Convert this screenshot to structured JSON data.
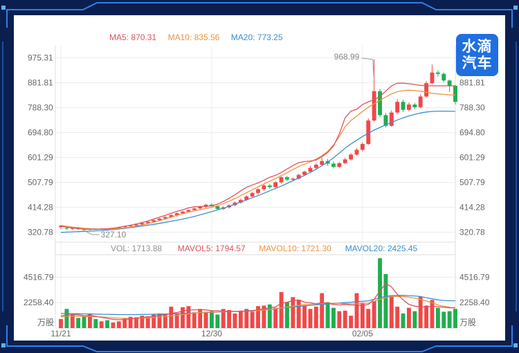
{
  "logo": {
    "line1": "水滴",
    "line2": "汽车"
  },
  "price_legend": [
    {
      "label": "MA5: 870.31",
      "color": "#e0505c"
    },
    {
      "label": "MA10: 835.56",
      "color": "#f0923c"
    },
    {
      "label": "MA20: 773.25",
      "color": "#3a8fd0"
    }
  ],
  "volume_legend": [
    {
      "label": "VOL: 1713.88",
      "color": "#909090"
    },
    {
      "label": "MAVOL5: 1794.57",
      "color": "#e0505c"
    },
    {
      "label": "MAVOL10: 1721.30",
      "color": "#f0923c"
    },
    {
      "label": "MAVOL20: 2425.45",
      "color": "#3a8fd0"
    }
  ],
  "colors": {
    "up": "#f04848",
    "down": "#1fae4e",
    "ma5": "#e0505c",
    "ma10": "#f0923c",
    "ma20": "#3a8fd0",
    "grid": "#ececec",
    "axis_text": "#666666"
  },
  "chart_data": [
    {
      "type": "candlestick",
      "title": "",
      "yticks": [
        "975.31",
        "881.81",
        "788.30",
        "694.80",
        "601.29",
        "507.79",
        "414.28",
        "320.78"
      ],
      "ylim": [
        290,
        1000
      ],
      "grid": true,
      "annotations": [
        {
          "text": "968.99",
          "label": "high"
        },
        {
          "text": "327.10",
          "label": "low"
        }
      ],
      "xticks": [
        "11/21",
        "12/30",
        "02/05"
      ],
      "candles": [
        [
          340,
          345,
          332,
          348
        ],
        [
          337,
          334,
          330,
          340
        ],
        [
          334,
          336,
          329,
          339
        ],
        [
          336,
          332,
          328,
          338
        ],
        [
          332,
          331,
          327,
          334
        ],
        [
          331,
          333,
          327,
          335
        ],
        [
          333,
          332,
          329,
          335
        ],
        [
          332,
          334,
          330,
          336
        ],
        [
          334,
          333,
          329,
          335
        ],
        [
          333,
          336,
          330,
          338
        ],
        [
          336,
          340,
          333,
          342
        ],
        [
          340,
          343,
          336,
          345
        ],
        [
          343,
          346,
          339,
          348
        ],
        [
          346,
          350,
          342,
          352
        ],
        [
          350,
          355,
          346,
          357
        ],
        [
          355,
          360,
          350,
          362
        ],
        [
          360,
          366,
          356,
          368
        ],
        [
          366,
          372,
          362,
          374
        ],
        [
          372,
          378,
          368,
          381
        ],
        [
          378,
          385,
          374,
          388
        ],
        [
          385,
          392,
          380,
          395
        ],
        [
          392,
          398,
          388,
          401
        ],
        [
          398,
          404,
          394,
          406
        ],
        [
          404,
          410,
          400,
          413
        ],
        [
          410,
          416,
          406,
          419
        ],
        [
          416,
          424,
          412,
          427
        ],
        [
          424,
          418,
          414,
          429
        ],
        [
          418,
          408,
          404,
          422
        ],
        [
          408,
          414,
          404,
          418
        ],
        [
          414,
          422,
          410,
          425
        ],
        [
          422,
          432,
          418,
          436
        ],
        [
          432,
          442,
          428,
          446
        ],
        [
          442,
          455,
          438,
          460
        ],
        [
          455,
          468,
          450,
          472
        ],
        [
          468,
          482,
          462,
          486
        ],
        [
          482,
          496,
          476,
          500
        ],
        [
          496,
          490,
          484,
          502
        ],
        [
          490,
          508,
          486,
          512
        ],
        [
          508,
          527,
          504,
          530
        ],
        [
          527,
          518,
          512,
          532
        ],
        [
          518,
          522,
          514,
          526
        ],
        [
          522,
          536,
          518,
          540
        ],
        [
          536,
          548,
          532,
          552
        ],
        [
          548,
          562,
          544,
          570
        ],
        [
          562,
          574,
          556,
          580
        ],
        [
          574,
          588,
          570,
          600
        ],
        [
          588,
          578,
          570,
          596
        ],
        [
          578,
          566,
          560,
          586
        ],
        [
          566,
          580,
          562,
          584
        ],
        [
          580,
          594,
          576,
          600
        ],
        [
          594,
          612,
          590,
          618
        ],
        [
          612,
          630,
          608,
          636
        ],
        [
          630,
          652,
          624,
          658
        ],
        [
          652,
          740,
          648,
          748
        ],
        [
          740,
          850,
          736,
          968.99
        ],
        [
          850,
          760,
          752,
          858
        ],
        [
          760,
          720,
          714,
          768
        ],
        [
          720,
          770,
          716,
          778
        ],
        [
          770,
          810,
          764,
          820
        ],
        [
          810,
          780,
          772,
          818
        ],
        [
          780,
          800,
          774,
          808
        ],
        [
          800,
          790,
          782,
          806
        ],
        [
          790,
          830,
          786,
          838
        ],
        [
          830,
          880,
          826,
          888
        ],
        [
          880,
          920,
          876,
          950
        ],
        [
          920,
          915,
          905,
          928
        ],
        [
          915,
          890,
          884,
          920
        ],
        [
          890,
          870,
          848,
          894
        ],
        [
          870,
          810,
          800,
          874
        ]
      ],
      "ma5": [
        344,
        340,
        337,
        335,
        332,
        332,
        332,
        333,
        334,
        336,
        339,
        343,
        347,
        352,
        357,
        363,
        370,
        377,
        384,
        392,
        399,
        405,
        412,
        416,
        417,
        418,
        420,
        426,
        436,
        448,
        461,
        476,
        489,
        498,
        506,
        516,
        527,
        534,
        545,
        558,
        571,
        582,
        586,
        588,
        592,
        604,
        620,
        644,
        690,
        750,
        775,
        782,
        800,
        810,
        818,
        830,
        850,
        870,
        880,
        880,
        878,
        875,
        872,
        870,
        870,
        870,
        870,
        870,
        870
      ],
      "ma10": [
        346,
        343,
        340,
        338,
        336,
        334,
        333,
        332,
        332,
        333,
        335,
        337,
        340,
        344,
        348,
        353,
        358,
        364,
        370,
        377,
        384,
        390,
        396,
        401,
        405,
        410,
        414,
        420,
        428,
        437,
        447,
        458,
        469,
        480,
        491,
        502,
        512,
        522,
        533,
        544,
        556,
        567,
        576,
        585,
        595,
        608,
        624,
        648,
        680,
        716,
        740,
        756,
        774,
        790,
        803,
        815,
        828,
        840,
        848,
        852,
        854,
        852,
        850,
        846,
        842,
        840,
        838,
        836,
        836
      ],
      "ma20": [
        320,
        321,
        322,
        323,
        324,
        325,
        326,
        327,
        329,
        331,
        333,
        335,
        338,
        341,
        344,
        347,
        350,
        354,
        358,
        362,
        366,
        370,
        375,
        380,
        386,
        392,
        398,
        404,
        411,
        418,
        426,
        434,
        442,
        450,
        458,
        467,
        476,
        485,
        494,
        504,
        514,
        524,
        534,
        545,
        557,
        570,
        584,
        600,
        618,
        636,
        652,
        666,
        680,
        692,
        704,
        714,
        724,
        733,
        742,
        750,
        757,
        763,
        768,
        772,
        774,
        775,
        775,
        775,
        774
      ]
    },
    {
      "type": "bar",
      "title": "",
      "unit": "万股",
      "yticks": [
        "4516.79",
        "2258.40"
      ],
      "ylim": [
        0,
        6000
      ],
      "volumes": [
        800,
        1700,
        1200,
        900,
        1000,
        1300,
        800,
        600,
        700,
        500,
        600,
        900,
        1000,
        950,
        1100,
        1050,
        1200,
        1300,
        1150,
        1900,
        1300,
        1850,
        1950,
        1400,
        1700,
        1400,
        1500,
        1200,
        1700,
        1600,
        1300,
        1550,
        1700,
        1450,
        1950,
        2000,
        2100,
        1800,
        3200,
        2300,
        2750,
        2500,
        2000,
        1700,
        1900,
        3100,
        2300,
        1800,
        1500,
        1550,
        1100,
        3100,
        2250,
        1700,
        2400,
        6200,
        4800,
        2900,
        1900,
        1300,
        1800,
        1500,
        2800,
        2000,
        2500,
        1800,
        1450,
        1500,
        1700
      ],
      "mavol5": [
        1100,
        1150,
        1200,
        1180,
        1100,
        1120,
        1050,
        950,
        860,
        780,
        740,
        760,
        820,
        880,
        920,
        1000,
        1060,
        1120,
        1180,
        1300,
        1380,
        1500,
        1600,
        1620,
        1650,
        1610,
        1550,
        1540,
        1500,
        1480,
        1470,
        1480,
        1500,
        1530,
        1620,
        1700,
        1820,
        1880,
        2200,
        2300,
        2450,
        2500,
        2300,
        2250,
        2150,
        2250,
        2200,
        2100,
        2050,
        2100,
        2050,
        2050,
        2000,
        2100,
        2550,
        3300,
        3950,
        3650,
        3000,
        2500,
        2100,
        1950,
        1900,
        1850,
        1950,
        1900,
        1850,
        1800,
        1800
      ],
      "mavol10": [
        1000,
        1020,
        1050,
        1060,
        1040,
        1030,
        1010,
        990,
        960,
        920,
        880,
        860,
        850,
        860,
        880,
        910,
        940,
        980,
        1020,
        1080,
        1130,
        1200,
        1270,
        1330,
        1380,
        1400,
        1420,
        1440,
        1460,
        1470,
        1480,
        1490,
        1500,
        1520,
        1560,
        1600,
        1650,
        1700,
        1790,
        1870,
        1950,
        2020,
        2080,
        2120,
        2150,
        2180,
        2200,
        2200,
        2190,
        2170,
        2160,
        2160,
        2180,
        2220,
        2380,
        2550,
        2700,
        2800,
        2800,
        2800,
        2750,
        2650,
        2550,
        2400,
        2250,
        2050,
        1950,
        1850,
        1780
      ],
      "mavol20": [
        1300,
        1290,
        1280,
        1270,
        1260,
        1250,
        1240,
        1230,
        1220,
        1210,
        1200,
        1200,
        1200,
        1200,
        1210,
        1220,
        1230,
        1240,
        1250,
        1260,
        1280,
        1300,
        1320,
        1340,
        1360,
        1380,
        1400,
        1420,
        1440,
        1460,
        1480,
        1500,
        1530,
        1560,
        1600,
        1640,
        1680,
        1720,
        1770,
        1820,
        1870,
        1920,
        1970,
        2020,
        2060,
        2100,
        2140,
        2180,
        2220,
        2260,
        2300,
        2340,
        2380,
        2420,
        2550,
        2700,
        2820,
        2880,
        2900,
        2900,
        2880,
        2850,
        2800,
        2700,
        2600,
        2500,
        2450,
        2430,
        2425
      ]
    }
  ]
}
